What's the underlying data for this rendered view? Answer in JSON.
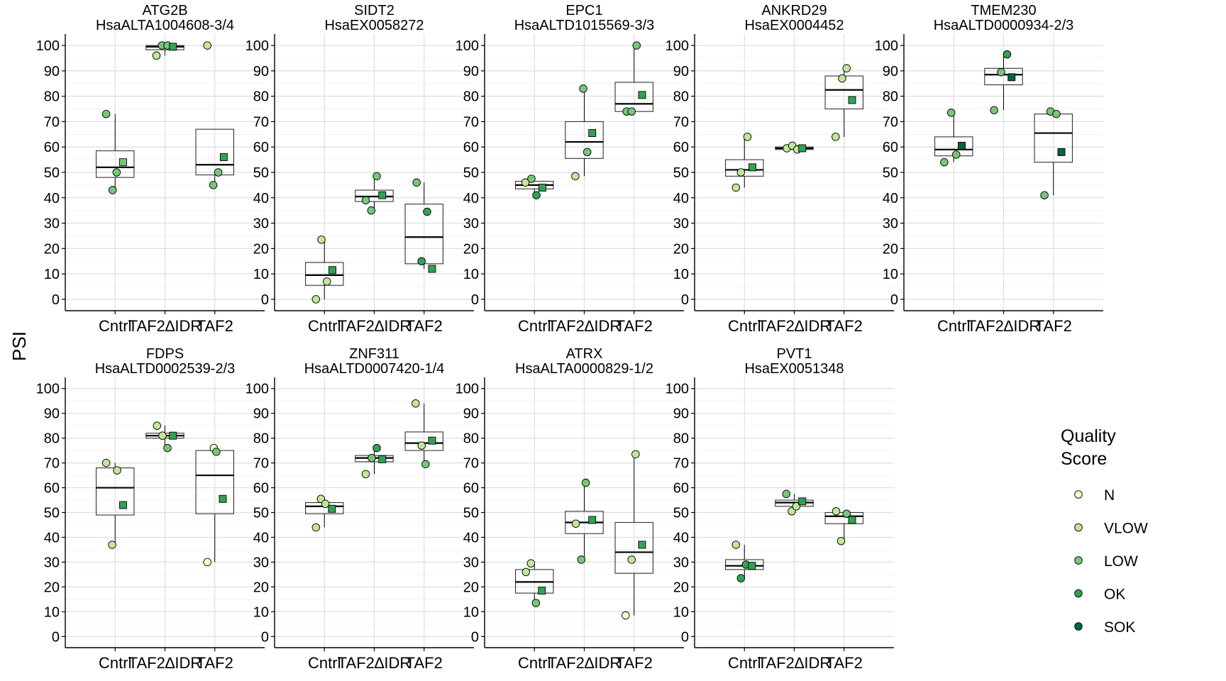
{
  "figure": {
    "ylabel": "PSI",
    "legend": {
      "title_line1": "Quality",
      "title_line2": "Score",
      "items": [
        {
          "label": "N",
          "color": "#ffffcc"
        },
        {
          "label": "VLOW",
          "color": "#c2e699"
        },
        {
          "label": "LOW",
          "color": "#78c679"
        },
        {
          "label": "OK",
          "color": "#31a354"
        },
        {
          "label": "SOK",
          "color": "#006837"
        }
      ]
    },
    "y_ticks": [
      0,
      10,
      20,
      30,
      40,
      50,
      60,
      70,
      80,
      90,
      100
    ],
    "categories": [
      "Cntrl",
      "TAF2∆IDR",
      "TAF2"
    ]
  },
  "chart_data": [
    {
      "type": "box",
      "title": "ATG2B",
      "subtitle": "HsaALTA1004608-3/4",
      "ylim": [
        0,
        100
      ],
      "categories": [
        "Cntrl",
        "TAF2∆IDR",
        "TAF2"
      ],
      "boxes": [
        {
          "q1": 48,
          "median": 52,
          "q3": 58.5,
          "whisker_low": 43,
          "whisker_high": 73
        },
        {
          "q1": 98.3,
          "median": 99.5,
          "q3": 100,
          "whisker_low": 96,
          "whisker_high": 100
        },
        {
          "q1": 49,
          "median": 53,
          "q3": 67,
          "whisker_low": 45,
          "whisker_high": 67
        }
      ],
      "points": [
        {
          "group": 0,
          "offset": -0.18,
          "y": 73,
          "q": "LOW"
        },
        {
          "group": 0,
          "offset": -0.05,
          "y": 43,
          "q": "LOW"
        },
        {
          "group": 0,
          "offset": 0.03,
          "y": 50,
          "q": "LOW"
        },
        {
          "group": 0,
          "offset": 0.16,
          "y": 54,
          "q": "LOW",
          "shape": "square"
        },
        {
          "group": 1,
          "offset": -0.17,
          "y": 96,
          "q": "VLOW"
        },
        {
          "group": 1,
          "offset": -0.06,
          "y": 100,
          "q": "LOW"
        },
        {
          "group": 1,
          "offset": 0.05,
          "y": 100,
          "q": "LOW"
        },
        {
          "group": 1,
          "offset": 0.16,
          "y": 99.5,
          "q": "OK",
          "shape": "square"
        },
        {
          "group": 2,
          "offset": -0.15,
          "y": 100,
          "q": "VLOW"
        },
        {
          "group": 2,
          "offset": -0.03,
          "y": 45,
          "q": "LOW"
        },
        {
          "group": 2,
          "offset": 0.07,
          "y": 50,
          "q": "LOW"
        },
        {
          "group": 2,
          "offset": 0.18,
          "y": 56,
          "q": "OK",
          "shape": "square"
        }
      ]
    },
    {
      "type": "box",
      "title": "SIDT2",
      "subtitle": "HsaEX0058272",
      "ylim": [
        0,
        100
      ],
      "categories": [
        "Cntrl",
        "TAF2∆IDR",
        "TAF2"
      ],
      "boxes": [
        {
          "q1": 5.5,
          "median": 9.5,
          "q3": 14.5,
          "whisker_low": 0,
          "whisker_high": 23.5
        },
        {
          "q1": 38.5,
          "median": 40.5,
          "q3": 43,
          "whisker_low": 35,
          "whisker_high": 48.5
        },
        {
          "q1": 14,
          "median": 24.5,
          "q3": 37.5,
          "whisker_low": 12,
          "whisker_high": 46
        }
      ],
      "points": [
        {
          "group": 0,
          "offset": -0.17,
          "y": 0,
          "q": "VLOW"
        },
        {
          "group": 0,
          "offset": -0.06,
          "y": 23.5,
          "q": "VLOW"
        },
        {
          "group": 0,
          "offset": 0.05,
          "y": 7,
          "q": "VLOW"
        },
        {
          "group": 0,
          "offset": 0.16,
          "y": 11.5,
          "q": "OK",
          "shape": "square"
        },
        {
          "group": 1,
          "offset": -0.17,
          "y": 39,
          "q": "LOW"
        },
        {
          "group": 1,
          "offset": -0.06,
          "y": 35,
          "q": "LOW"
        },
        {
          "group": 1,
          "offset": 0.05,
          "y": 48.5,
          "q": "LOW"
        },
        {
          "group": 1,
          "offset": 0.16,
          "y": 41,
          "q": "OK",
          "shape": "square"
        },
        {
          "group": 2,
          "offset": -0.15,
          "y": 46,
          "q": "LOW"
        },
        {
          "group": 2,
          "offset": -0.05,
          "y": 15,
          "q": "OK"
        },
        {
          "group": 2,
          "offset": 0.06,
          "y": 34.5,
          "q": "OK"
        },
        {
          "group": 2,
          "offset": 0.16,
          "y": 12,
          "q": "OK",
          "shape": "square"
        }
      ]
    },
    {
      "type": "box",
      "title": "EPC1",
      "subtitle": "HsaALTD1015569-3/3",
      "ylim": [
        0,
        100
      ],
      "categories": [
        "Cntrl",
        "TAF2∆IDR",
        "TAF2"
      ],
      "boxes": [
        {
          "q1": 43.5,
          "median": 45,
          "q3": 46.5,
          "whisker_low": 41,
          "whisker_high": 47.5
        },
        {
          "q1": 55.5,
          "median": 62,
          "q3": 70,
          "whisker_low": 48.5,
          "whisker_high": 83
        },
        {
          "q1": 74,
          "median": 77,
          "q3": 85.5,
          "whisker_low": 74,
          "whisker_high": 100
        }
      ],
      "points": [
        {
          "group": 0,
          "offset": -0.18,
          "y": 46,
          "q": "VLOW"
        },
        {
          "group": 0,
          "offset": -0.06,
          "y": 47.5,
          "q": "LOW"
        },
        {
          "group": 0,
          "offset": 0.04,
          "y": 41,
          "q": "OK"
        },
        {
          "group": 0,
          "offset": 0.16,
          "y": 44,
          "q": "OK",
          "shape": "square"
        },
        {
          "group": 1,
          "offset": -0.18,
          "y": 48.5,
          "q": "VLOW"
        },
        {
          "group": 1,
          "offset": -0.02,
          "y": 83,
          "q": "LOW"
        },
        {
          "group": 1,
          "offset": 0.06,
          "y": 58,
          "q": "LOW"
        },
        {
          "group": 1,
          "offset": 0.16,
          "y": 65.5,
          "q": "OK",
          "shape": "square"
        },
        {
          "group": 2,
          "offset": -0.15,
          "y": 74,
          "q": "LOW"
        },
        {
          "group": 2,
          "offset": -0.05,
          "y": 74,
          "q": "LOW"
        },
        {
          "group": 2,
          "offset": 0.05,
          "y": 100,
          "q": "LOW"
        },
        {
          "group": 2,
          "offset": 0.16,
          "y": 80.5,
          "q": "OK",
          "shape": "square"
        }
      ]
    },
    {
      "type": "box",
      "title": "ANKRD29",
      "subtitle": "HsaEX0004452",
      "ylim": [
        0,
        100
      ],
      "categories": [
        "Cntrl",
        "TAF2∆IDR",
        "TAF2"
      ],
      "boxes": [
        {
          "q1": 48.5,
          "median": 51,
          "q3": 55,
          "whisker_low": 44,
          "whisker_high": 64
        },
        {
          "q1": 59,
          "median": 59.5,
          "q3": 60,
          "whisker_low": 59,
          "whisker_high": 60.5
        },
        {
          "q1": 75,
          "median": 82.5,
          "q3": 88,
          "whisker_low": 64,
          "whisker_high": 91
        }
      ],
      "points": [
        {
          "group": 0,
          "offset": -0.17,
          "y": 44,
          "q": "VLOW"
        },
        {
          "group": 0,
          "offset": -0.07,
          "y": 50,
          "q": "VLOW"
        },
        {
          "group": 0,
          "offset": 0.06,
          "y": 64,
          "q": "VLOW"
        },
        {
          "group": 0,
          "offset": 0.16,
          "y": 52,
          "q": "OK",
          "shape": "square"
        },
        {
          "group": 1,
          "offset": -0.15,
          "y": 59.5,
          "q": "VLOW"
        },
        {
          "group": 1,
          "offset": -0.04,
          "y": 60.5,
          "q": "VLOW"
        },
        {
          "group": 1,
          "offset": 0.06,
          "y": 59,
          "q": "VLOW"
        },
        {
          "group": 1,
          "offset": 0.16,
          "y": 59.5,
          "q": "OK",
          "shape": "square"
        },
        {
          "group": 2,
          "offset": -0.17,
          "y": 64,
          "q": "VLOW"
        },
        {
          "group": 2,
          "offset": -0.04,
          "y": 87,
          "q": "VLOW"
        },
        {
          "group": 2,
          "offset": 0.05,
          "y": 91,
          "q": "VLOW"
        },
        {
          "group": 2,
          "offset": 0.16,
          "y": 78.5,
          "q": "OK",
          "shape": "square"
        }
      ]
    },
    {
      "type": "box",
      "title": "TMEM230",
      "subtitle": "HsaALTD0000934-2/3",
      "ylim": [
        0,
        100
      ],
      "categories": [
        "Cntrl",
        "TAF2∆IDR",
        "TAF2"
      ],
      "boxes": [
        {
          "q1": 56.5,
          "median": 59,
          "q3": 64,
          "whisker_low": 54,
          "whisker_high": 73.5
        },
        {
          "q1": 84.5,
          "median": 88.5,
          "q3": 91,
          "whisker_low": 74.5,
          "whisker_high": 96.5
        },
        {
          "q1": 54,
          "median": 65.5,
          "q3": 73,
          "whisker_low": 41,
          "whisker_high": 74
        }
      ],
      "points": [
        {
          "group": 0,
          "offset": -0.19,
          "y": 54,
          "q": "LOW"
        },
        {
          "group": 0,
          "offset": -0.05,
          "y": 73.5,
          "q": "LOW"
        },
        {
          "group": 0,
          "offset": 0.05,
          "y": 57,
          "q": "LOW"
        },
        {
          "group": 0,
          "offset": 0.16,
          "y": 60.5,
          "q": "SOK",
          "shape": "square"
        },
        {
          "group": 1,
          "offset": -0.19,
          "y": 74.5,
          "q": "LOW"
        },
        {
          "group": 1,
          "offset": -0.05,
          "y": 89.5,
          "q": "LOW"
        },
        {
          "group": 1,
          "offset": 0.07,
          "y": 96.5,
          "q": "OK"
        },
        {
          "group": 1,
          "offset": 0.16,
          "y": 87.5,
          "q": "SOK",
          "shape": "square"
        },
        {
          "group": 2,
          "offset": -0.18,
          "y": 41,
          "q": "LOW"
        },
        {
          "group": 2,
          "offset": -0.06,
          "y": 74,
          "q": "LOW"
        },
        {
          "group": 2,
          "offset": 0.06,
          "y": 73,
          "q": "LOW"
        },
        {
          "group": 2,
          "offset": 0.16,
          "y": 58,
          "q": "SOK",
          "shape": "square"
        }
      ]
    },
    {
      "type": "box",
      "title": "FDPS",
      "subtitle": "HsaALTD0002539-2/3",
      "ylim": [
        0,
        100
      ],
      "categories": [
        "Cntrl",
        "TAF2∆IDR",
        "TAF2"
      ],
      "boxes": [
        {
          "q1": 49,
          "median": 60,
          "q3": 68,
          "whisker_low": 37,
          "whisker_high": 70
        },
        {
          "q1": 80,
          "median": 81,
          "q3": 82,
          "whisker_low": 76,
          "whisker_high": 85
        },
        {
          "q1": 49.5,
          "median": 65,
          "q3": 75,
          "whisker_low": 30,
          "whisker_high": 76
        }
      ],
      "points": [
        {
          "group": 0,
          "offset": -0.18,
          "y": 70,
          "q": "VLOW"
        },
        {
          "group": 0,
          "offset": -0.06,
          "y": 37,
          "q": "VLOW"
        },
        {
          "group": 0,
          "offset": 0.04,
          "y": 67,
          "q": "VLOW"
        },
        {
          "group": 0,
          "offset": 0.16,
          "y": 53,
          "q": "OK",
          "shape": "square"
        },
        {
          "group": 1,
          "offset": -0.16,
          "y": 85,
          "q": "VLOW"
        },
        {
          "group": 1,
          "offset": -0.05,
          "y": 81,
          "q": "VLOW"
        },
        {
          "group": 1,
          "offset": 0.05,
          "y": 76,
          "q": "LOW"
        },
        {
          "group": 1,
          "offset": 0.16,
          "y": 81,
          "q": "OK",
          "shape": "square"
        },
        {
          "group": 2,
          "offset": -0.15,
          "y": 30,
          "q": "N"
        },
        {
          "group": 2,
          "offset": -0.02,
          "y": 76,
          "q": "N"
        },
        {
          "group": 2,
          "offset": 0.03,
          "y": 74.5,
          "q": "LOW"
        },
        {
          "group": 2,
          "offset": 0.16,
          "y": 55.5,
          "q": "OK",
          "shape": "square"
        }
      ]
    },
    {
      "type": "box",
      "title": "ZNF311",
      "subtitle": "HsaALTD0007420-1/4",
      "ylim": [
        0,
        100
      ],
      "categories": [
        "Cntrl",
        "TAF2∆IDR",
        "TAF2"
      ],
      "boxes": [
        {
          "q1": 49.5,
          "median": 52.5,
          "q3": 54,
          "whisker_low": 44,
          "whisker_high": 55.5
        },
        {
          "q1": 70.5,
          "median": 72,
          "q3": 73,
          "whisker_low": 65.5,
          "whisker_high": 76
        },
        {
          "q1": 75,
          "median": 78,
          "q3": 82.5,
          "whisker_low": 69.5,
          "whisker_high": 94
        }
      ],
      "points": [
        {
          "group": 0,
          "offset": -0.17,
          "y": 44,
          "q": "VLOW"
        },
        {
          "group": 0,
          "offset": -0.07,
          "y": 55.5,
          "q": "VLOW"
        },
        {
          "group": 0,
          "offset": 0.02,
          "y": 53.5,
          "q": "VLOW"
        },
        {
          "group": 0,
          "offset": 0.15,
          "y": 51.5,
          "q": "OK",
          "shape": "square"
        },
        {
          "group": 1,
          "offset": -0.17,
          "y": 65.5,
          "q": "VLOW"
        },
        {
          "group": 1,
          "offset": -0.05,
          "y": 72,
          "q": "LOW"
        },
        {
          "group": 1,
          "offset": 0.05,
          "y": 76,
          "q": "OK"
        },
        {
          "group": 1,
          "offset": 0.16,
          "y": 71.5,
          "q": "OK",
          "shape": "square"
        },
        {
          "group": 2,
          "offset": -0.17,
          "y": 94,
          "q": "VLOW"
        },
        {
          "group": 2,
          "offset": -0.05,
          "y": 77,
          "q": "VLOW"
        },
        {
          "group": 2,
          "offset": 0.03,
          "y": 69.5,
          "q": "LOW"
        },
        {
          "group": 2,
          "offset": 0.16,
          "y": 79,
          "q": "OK",
          "shape": "square"
        }
      ]
    },
    {
      "type": "box",
      "title": "ATRX",
      "subtitle": "HsaALTA0000829-1/2",
      "ylim": [
        0,
        100
      ],
      "categories": [
        "Cntrl",
        "TAF2∆IDR",
        "TAF2"
      ],
      "boxes": [
        {
          "q1": 17.5,
          "median": 22,
          "q3": 27,
          "whisker_low": 13.5,
          "whisker_high": 29.5
        },
        {
          "q1": 41.5,
          "median": 46,
          "q3": 50.5,
          "whisker_low": 31,
          "whisker_high": 62
        },
        {
          "q1": 25.5,
          "median": 34,
          "q3": 46,
          "whisker_low": 8.5,
          "whisker_high": 73.5
        }
      ],
      "points": [
        {
          "group": 0,
          "offset": -0.17,
          "y": 26,
          "q": "VLOW"
        },
        {
          "group": 0,
          "offset": -0.07,
          "y": 29.5,
          "q": "VLOW"
        },
        {
          "group": 0,
          "offset": 0.03,
          "y": 13.5,
          "q": "LOW"
        },
        {
          "group": 0,
          "offset": 0.15,
          "y": 18.5,
          "q": "OK",
          "shape": "square"
        },
        {
          "group": 1,
          "offset": -0.17,
          "y": 45.5,
          "q": "VLOW"
        },
        {
          "group": 1,
          "offset": -0.06,
          "y": 31,
          "q": "LOW"
        },
        {
          "group": 1,
          "offset": 0.03,
          "y": 62,
          "q": "LOW"
        },
        {
          "group": 1,
          "offset": 0.16,
          "y": 47,
          "q": "OK",
          "shape": "square"
        },
        {
          "group": 2,
          "offset": -0.17,
          "y": 8.5,
          "q": "N"
        },
        {
          "group": 2,
          "offset": -0.05,
          "y": 31,
          "q": "VLOW"
        },
        {
          "group": 2,
          "offset": 0.03,
          "y": 73.5,
          "q": "VLOW"
        },
        {
          "group": 2,
          "offset": 0.16,
          "y": 37,
          "q": "OK",
          "shape": "square"
        }
      ]
    },
    {
      "type": "box",
      "title": "PVT1",
      "subtitle": "HsaEX0051348",
      "ylim": [
        0,
        100
      ],
      "categories": [
        "Cntrl",
        "TAF2∆IDR",
        "TAF2"
      ],
      "boxes": [
        {
          "q1": 27,
          "median": 28.5,
          "q3": 31,
          "whisker_low": 23,
          "whisker_high": 37
        },
        {
          "q1": 52.5,
          "median": 54,
          "q3": 55,
          "whisker_low": 50.5,
          "whisker_high": 57.5
        },
        {
          "q1": 45.5,
          "median": 48.5,
          "q3": 50,
          "whisker_low": 38.5,
          "whisker_high": 50.5
        }
      ],
      "points": [
        {
          "group": 0,
          "offset": -0.17,
          "y": 37,
          "q": "VLOW"
        },
        {
          "group": 0,
          "offset": -0.07,
          "y": 23.5,
          "q": "OK"
        },
        {
          "group": 0,
          "offset": 0.03,
          "y": 29,
          "q": "OK"
        },
        {
          "group": 0,
          "offset": 0.15,
          "y": 28.5,
          "q": "OK",
          "shape": "square"
        },
        {
          "group": 1,
          "offset": -0.16,
          "y": 57.5,
          "q": "LOW"
        },
        {
          "group": 1,
          "offset": -0.05,
          "y": 50.5,
          "q": "VLOW"
        },
        {
          "group": 1,
          "offset": 0.04,
          "y": 52.5,
          "q": "VLOW"
        },
        {
          "group": 1,
          "offset": 0.16,
          "y": 54.5,
          "q": "OK",
          "shape": "square"
        },
        {
          "group": 2,
          "offset": -0.16,
          "y": 50.5,
          "q": "VLOW"
        },
        {
          "group": 2,
          "offset": -0.06,
          "y": 38.5,
          "q": "VLOW"
        },
        {
          "group": 2,
          "offset": 0.05,
          "y": 49.5,
          "q": "LOW"
        },
        {
          "group": 2,
          "offset": 0.16,
          "y": 47,
          "q": "OK",
          "shape": "square"
        }
      ]
    }
  ]
}
